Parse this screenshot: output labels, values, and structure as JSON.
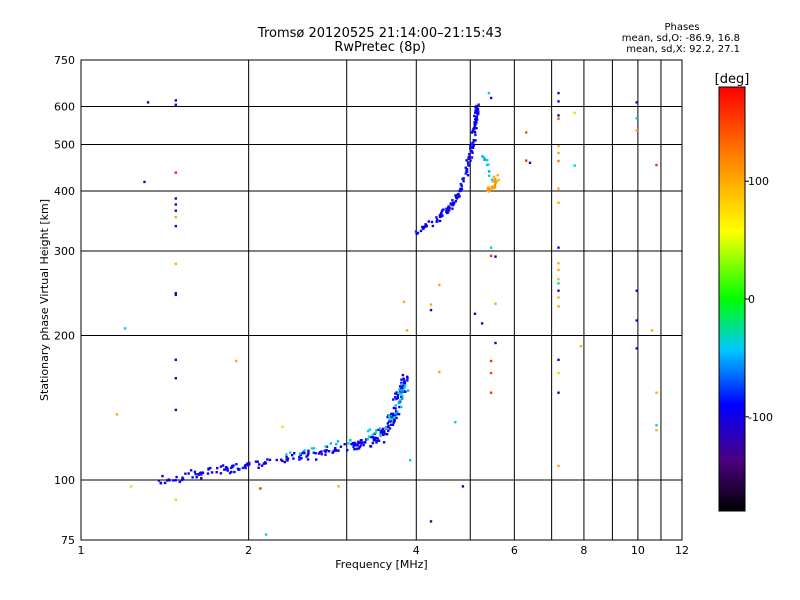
{
  "chart_data": {
    "type": "scatter",
    "title": "Tromsø 20120525 21:14:00–21:15:43",
    "subtitle": "RwPretec (8p)",
    "xlabel": "Frequency [MHz]",
    "ylabel": "Stationary phase Virtual Height [km]",
    "x_scale": "log",
    "y_scale": "log",
    "xlim": [
      1,
      12
    ],
    "ylim": [
      75,
      750
    ],
    "x_ticks": [
      1,
      2,
      4,
      6,
      8,
      10,
      12
    ],
    "x_minor": [
      3,
      5,
      7,
      9,
      11
    ],
    "y_ticks": [
      75,
      100,
      200,
      300,
      400,
      500,
      600,
      750
    ],
    "grid": true,
    "stats": {
      "title": "Phases",
      "line1": "mean, sd,O:  -86.9, 16.8",
      "line2": "mean, sd,X:  92.2, 27.1"
    },
    "colorbar": {
      "label": "[deg]",
      "range": [
        -180,
        180
      ],
      "ticks": [
        100,
        0,
        -100
      ]
    },
    "clusters": [
      {
        "name": "o-trace-low",
        "phase": -100,
        "path": [
          [
            1.4,
            100
          ],
          [
            1.6,
            103
          ],
          [
            1.8,
            105
          ],
          [
            2.0,
            107
          ],
          [
            2.3,
            110
          ],
          [
            2.6,
            113
          ],
          [
            3.0,
            117
          ],
          [
            3.3,
            120
          ],
          [
            3.5,
            125
          ],
          [
            3.65,
            135
          ],
          [
            3.75,
            150
          ],
          [
            3.8,
            165
          ]
        ],
        "n": 260,
        "jitter": [
          0.03,
          0.035
        ]
      },
      {
        "name": "o-trace-low-cyan",
        "phase": -40,
        "path": [
          [
            2.3,
            112
          ],
          [
            2.8,
            118
          ],
          [
            3.4,
            125
          ],
          [
            3.7,
            140
          ],
          [
            3.8,
            160
          ]
        ],
        "n": 45,
        "jitter": [
          0.03,
          0.04
        ]
      },
      {
        "name": "o-trace-high",
        "phase": -95,
        "path": [
          [
            4.0,
            330
          ],
          [
            4.3,
            345
          ],
          [
            4.6,
            370
          ],
          [
            4.8,
            400
          ],
          [
            4.95,
            450
          ],
          [
            5.05,
            500
          ],
          [
            5.12,
            560
          ],
          [
            5.15,
            600
          ]
        ],
        "n": 150,
        "jitter": [
          0.012,
          0.025
        ]
      },
      {
        "name": "x-trace-high",
        "phase": 105,
        "path": [
          [
            5.35,
            390
          ],
          [
            5.5,
            410
          ],
          [
            5.6,
            430
          ]
        ],
        "n": 22,
        "jitter": [
          0.015,
          0.02
        ]
      },
      {
        "name": "x-trace-high-cyan",
        "phase": -40,
        "path": [
          [
            5.2,
            480
          ],
          [
            5.35,
            460
          ],
          [
            5.45,
            420
          ]
        ],
        "n": 10,
        "jitter": [
          0.015,
          0.02
        ]
      }
    ],
    "points": [
      {
        "x": 1.32,
        "y": 612,
        "phase": -110
      },
      {
        "x": 1.3,
        "y": 418,
        "phase": -110
      },
      {
        "x": 1.48,
        "y": 618,
        "phase": -120
      },
      {
        "x": 1.48,
        "y": 605,
        "phase": -120
      },
      {
        "x": 1.48,
        "y": 437,
        "phase": 165
      },
      {
        "x": 1.48,
        "y": 386,
        "phase": -110
      },
      {
        "x": 1.48,
        "y": 375,
        "phase": -110
      },
      {
        "x": 1.48,
        "y": 364,
        "phase": -120
      },
      {
        "x": 1.48,
        "y": 353,
        "phase": 100
      },
      {
        "x": 1.48,
        "y": 338,
        "phase": -110
      },
      {
        "x": 1.48,
        "y": 282,
        "phase": 100
      },
      {
        "x": 1.48,
        "y": 245,
        "phase": -110
      },
      {
        "x": 1.48,
        "y": 243,
        "phase": -120
      },
      {
        "x": 1.48,
        "y": 178,
        "phase": -110
      },
      {
        "x": 1.48,
        "y": 163,
        "phase": -110
      },
      {
        "x": 1.48,
        "y": 140,
        "phase": -120
      },
      {
        "x": 1.48,
        "y": 91,
        "phase": 85
      },
      {
        "x": 1.2,
        "y": 207,
        "phase": -40
      },
      {
        "x": 1.16,
        "y": 137,
        "phase": 100
      },
      {
        "x": 1.23,
        "y": 97,
        "phase": 40
      },
      {
        "x": 1.9,
        "y": 177,
        "phase": 100
      },
      {
        "x": 2.3,
        "y": 129,
        "phase": 40
      },
      {
        "x": 2.1,
        "y": 96,
        "phase": 160
      },
      {
        "x": 2.15,
        "y": 77,
        "phase": -40
      },
      {
        "x": 2.9,
        "y": 97,
        "phase": 100
      },
      {
        "x": 3.8,
        "y": 235,
        "phase": 100
      },
      {
        "x": 3.85,
        "y": 205,
        "phase": 100
      },
      {
        "x": 3.9,
        "y": 110,
        "phase": -40
      },
      {
        "x": 4.25,
        "y": 232,
        "phase": 105
      },
      {
        "x": 4.25,
        "y": 226,
        "phase": -110
      },
      {
        "x": 4.4,
        "y": 255,
        "phase": 100
      },
      {
        "x": 4.4,
        "y": 168,
        "phase": 100
      },
      {
        "x": 4.25,
        "y": 82,
        "phase": -120
      },
      {
        "x": 4.7,
        "y": 132,
        "phase": -40
      },
      {
        "x": 4.85,
        "y": 97,
        "phase": -110
      },
      {
        "x": 5.1,
        "y": 222,
        "phase": -110
      },
      {
        "x": 5.25,
        "y": 212,
        "phase": -120
      },
      {
        "x": 5.4,
        "y": 640,
        "phase": -40
      },
      {
        "x": 5.45,
        "y": 625,
        "phase": -110
      },
      {
        "x": 5.45,
        "y": 305,
        "phase": -40
      },
      {
        "x": 5.45,
        "y": 293,
        "phase": 160
      },
      {
        "x": 5.55,
        "y": 292,
        "phase": -110
      },
      {
        "x": 5.55,
        "y": 233,
        "phase": 100
      },
      {
        "x": 5.55,
        "y": 193,
        "phase": -110
      },
      {
        "x": 5.45,
        "y": 177,
        "phase": 160
      },
      {
        "x": 5.45,
        "y": 167,
        "phase": 145
      },
      {
        "x": 5.45,
        "y": 152,
        "phase": 160
      },
      {
        "x": 6.3,
        "y": 530,
        "phase": 140
      },
      {
        "x": 6.3,
        "y": 463,
        "phase": 160
      },
      {
        "x": 6.4,
        "y": 458,
        "phase": -120
      },
      {
        "x": 7.2,
        "y": 640,
        "phase": -120
      },
      {
        "x": 7.2,
        "y": 615,
        "phase": -110
      },
      {
        "x": 7.2,
        "y": 575,
        "phase": -120
      },
      {
        "x": 7.2,
        "y": 566,
        "phase": 140
      },
      {
        "x": 7.2,
        "y": 496,
        "phase": 100
      },
      {
        "x": 7.2,
        "y": 480,
        "phase": 100
      },
      {
        "x": 7.2,
        "y": 462,
        "phase": 120
      },
      {
        "x": 7.2,
        "y": 405,
        "phase": 100
      },
      {
        "x": 7.2,
        "y": 378,
        "phase": 100
      },
      {
        "x": 7.2,
        "y": 305,
        "phase": -110
      },
      {
        "x": 7.2,
        "y": 283,
        "phase": 100
      },
      {
        "x": 7.2,
        "y": 274,
        "phase": 100
      },
      {
        "x": 7.2,
        "y": 262,
        "phase": 100
      },
      {
        "x": 7.2,
        "y": 257,
        "phase": -40
      },
      {
        "x": 7.2,
        "y": 248,
        "phase": -110
      },
      {
        "x": 7.2,
        "y": 240,
        "phase": 100
      },
      {
        "x": 7.2,
        "y": 230,
        "phase": 100
      },
      {
        "x": 7.2,
        "y": 178,
        "phase": -110
      },
      {
        "x": 7.2,
        "y": 167,
        "phase": 40
      },
      {
        "x": 7.2,
        "y": 152,
        "phase": -120
      },
      {
        "x": 7.2,
        "y": 107,
        "phase": 100
      },
      {
        "x": 7.7,
        "y": 582,
        "phase": 40
      },
      {
        "x": 7.7,
        "y": 452,
        "phase": -40
      },
      {
        "x": 7.9,
        "y": 190,
        "phase": 100
      },
      {
        "x": 9.95,
        "y": 612,
        "phase": -110
      },
      {
        "x": 9.95,
        "y": 567,
        "phase": -40
      },
      {
        "x": 9.95,
        "y": 535,
        "phase": 100
      },
      {
        "x": 9.95,
        "y": 248,
        "phase": -120
      },
      {
        "x": 9.95,
        "y": 215,
        "phase": -110
      },
      {
        "x": 9.95,
        "y": 188,
        "phase": -110
      },
      {
        "x": 10.8,
        "y": 453,
        "phase": 160
      },
      {
        "x": 10.6,
        "y": 205,
        "phase": 100
      },
      {
        "x": 10.8,
        "y": 152,
        "phase": 100
      },
      {
        "x": 10.8,
        "y": 130,
        "phase": -40
      },
      {
        "x": 10.8,
        "y": 127,
        "phase": 100
      }
    ]
  }
}
